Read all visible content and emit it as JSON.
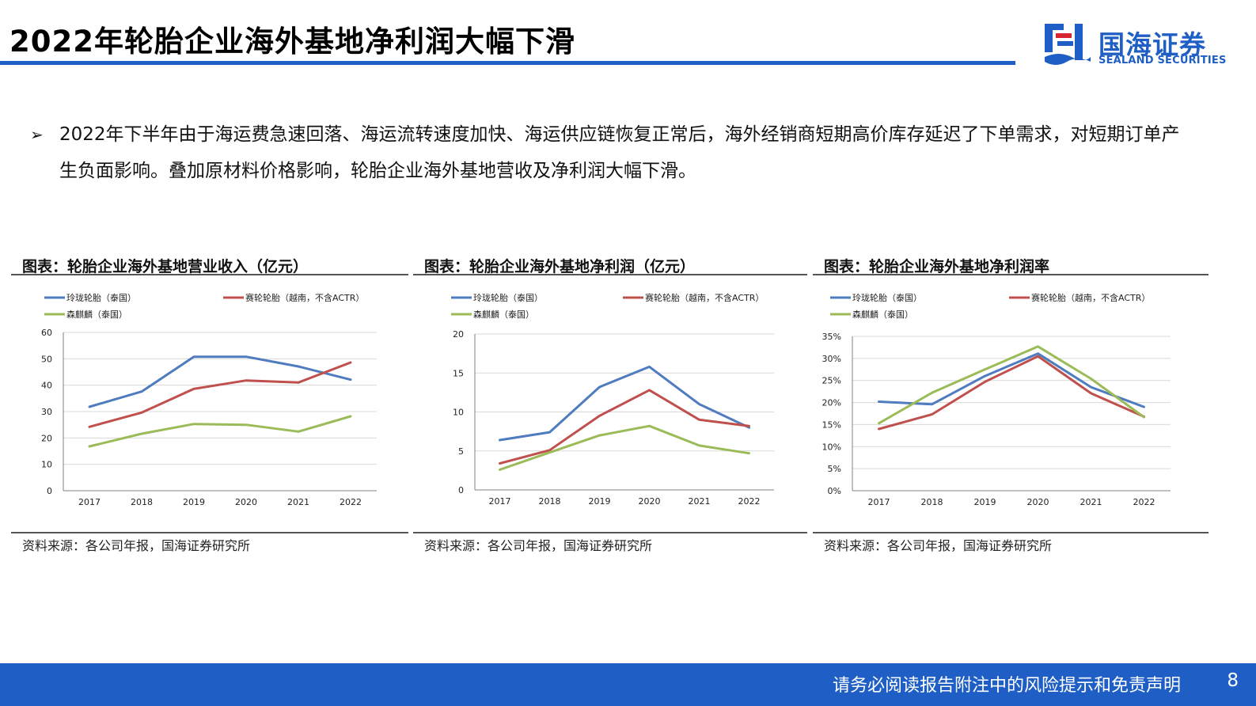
{
  "header": {
    "title": "2022年轮胎企业海外基地净利润大幅下滑",
    "logo_cn": "国海证券",
    "logo_en": "SEALAND SECURITIES",
    "accent_color": "#1f5fc5"
  },
  "bullet": {
    "marker": "➢",
    "text": "2022年下半年由于海运费急速回落、海运流转速度加快、海运供应链恢复正常后，海外经销商短期高价库存延迟了下单需求，对短期订单产生负面影响。叠加原材料价格影响，轮胎企业海外基地营收及净利润大幅下滑。"
  },
  "panels": [
    {
      "title": "图表：轮胎企业海外基地营业收入（亿元）",
      "source": "资料来源：各公司年报，国海证券研究所"
    },
    {
      "title": "图表：轮胎企业海外基地净利润（亿元）",
      "source": "资料来源：各公司年报，国海证券研究所"
    },
    {
      "title": "图表：轮胎企业海外基地净利润率",
      "source": "资料来源：各公司年报，国海证券研究所"
    }
  ],
  "chart_data": [
    {
      "type": "line",
      "title": "图表：轮胎企业海外基地营业收入（亿元）",
      "categories": [
        "2017",
        "2018",
        "2019",
        "2020",
        "2021",
        "2022"
      ],
      "ylim": [
        0,
        60
      ],
      "yticks": [
        0,
        10,
        20,
        30,
        40,
        50,
        60
      ],
      "ytick_labels": [
        "0",
        "10",
        "20",
        "30",
        "40",
        "50",
        "60"
      ],
      "grid": true,
      "legend": "top",
      "series": [
        {
          "name": "玲珑轮胎（泰国）",
          "color": "#4f7bbf",
          "values": [
            31.8,
            37.6,
            50.8,
            50.8,
            47.1,
            42.1
          ]
        },
        {
          "name": "赛轮轮胎（越南，不含ACTR）",
          "color": "#c0504d",
          "values": [
            24.2,
            29.6,
            38.6,
            41.8,
            41.0,
            48.6
          ]
        },
        {
          "name": "森麒麟（泰国）",
          "color": "#9bbb59",
          "values": [
            16.8,
            21.6,
            25.3,
            25.0,
            22.4,
            28.2
          ]
        }
      ]
    },
    {
      "type": "line",
      "title": "图表：轮胎企业海外基地净利润（亿元）",
      "categories": [
        "2017",
        "2018",
        "2019",
        "2020",
        "2021",
        "2022"
      ],
      "ylim": [
        0,
        20
      ],
      "yticks": [
        0,
        5,
        10,
        15,
        20
      ],
      "ytick_labels": [
        "0",
        "5",
        "10",
        "15",
        "20"
      ],
      "grid": true,
      "legend": "top",
      "series": [
        {
          "name": "玲珑轮胎（泰国）",
          "color": "#4f7bbf",
          "values": [
            6.4,
            7.4,
            13.2,
            15.8,
            11.0,
            8.0
          ]
        },
        {
          "name": "赛轮轮胎（越南，不含ACTR）",
          "color": "#c0504d",
          "values": [
            3.4,
            5.1,
            9.5,
            12.8,
            9.0,
            8.2
          ]
        },
        {
          "name": "森麒麟（泰国）",
          "color": "#9bbb59",
          "values": [
            2.6,
            4.8,
            7.0,
            8.2,
            5.7,
            4.7
          ]
        }
      ]
    },
    {
      "type": "line",
      "title": "图表：轮胎企业海外基地净利润率",
      "categories": [
        "2017",
        "2018",
        "2019",
        "2020",
        "2021",
        "2022"
      ],
      "ylim": [
        0,
        0.35
      ],
      "yticks": [
        0,
        0.05,
        0.1,
        0.15,
        0.2,
        0.25,
        0.3,
        0.35
      ],
      "ytick_labels": [
        "0%",
        "5%",
        "10%",
        "15%",
        "20%",
        "25%",
        "30%",
        "35%"
      ],
      "grid": true,
      "legend": "top",
      "series": [
        {
          "name": "玲珑轮胎（泰国）",
          "color": "#4f7bbf",
          "values": [
            0.202,
            0.196,
            0.26,
            0.311,
            0.235,
            0.19
          ]
        },
        {
          "name": "赛轮轮胎（越南，不含ACTR）",
          "color": "#c0504d",
          "values": [
            0.14,
            0.173,
            0.247,
            0.305,
            0.221,
            0.168
          ]
        },
        {
          "name": "森麒麟（泰国）",
          "color": "#9bbb59",
          "values": [
            0.153,
            0.222,
            0.275,
            0.327,
            0.254,
            0.167
          ]
        }
      ]
    }
  ],
  "footer": {
    "disclaimer": "请务必阅读报告附注中的风险提示和免责声明",
    "page": "8"
  }
}
